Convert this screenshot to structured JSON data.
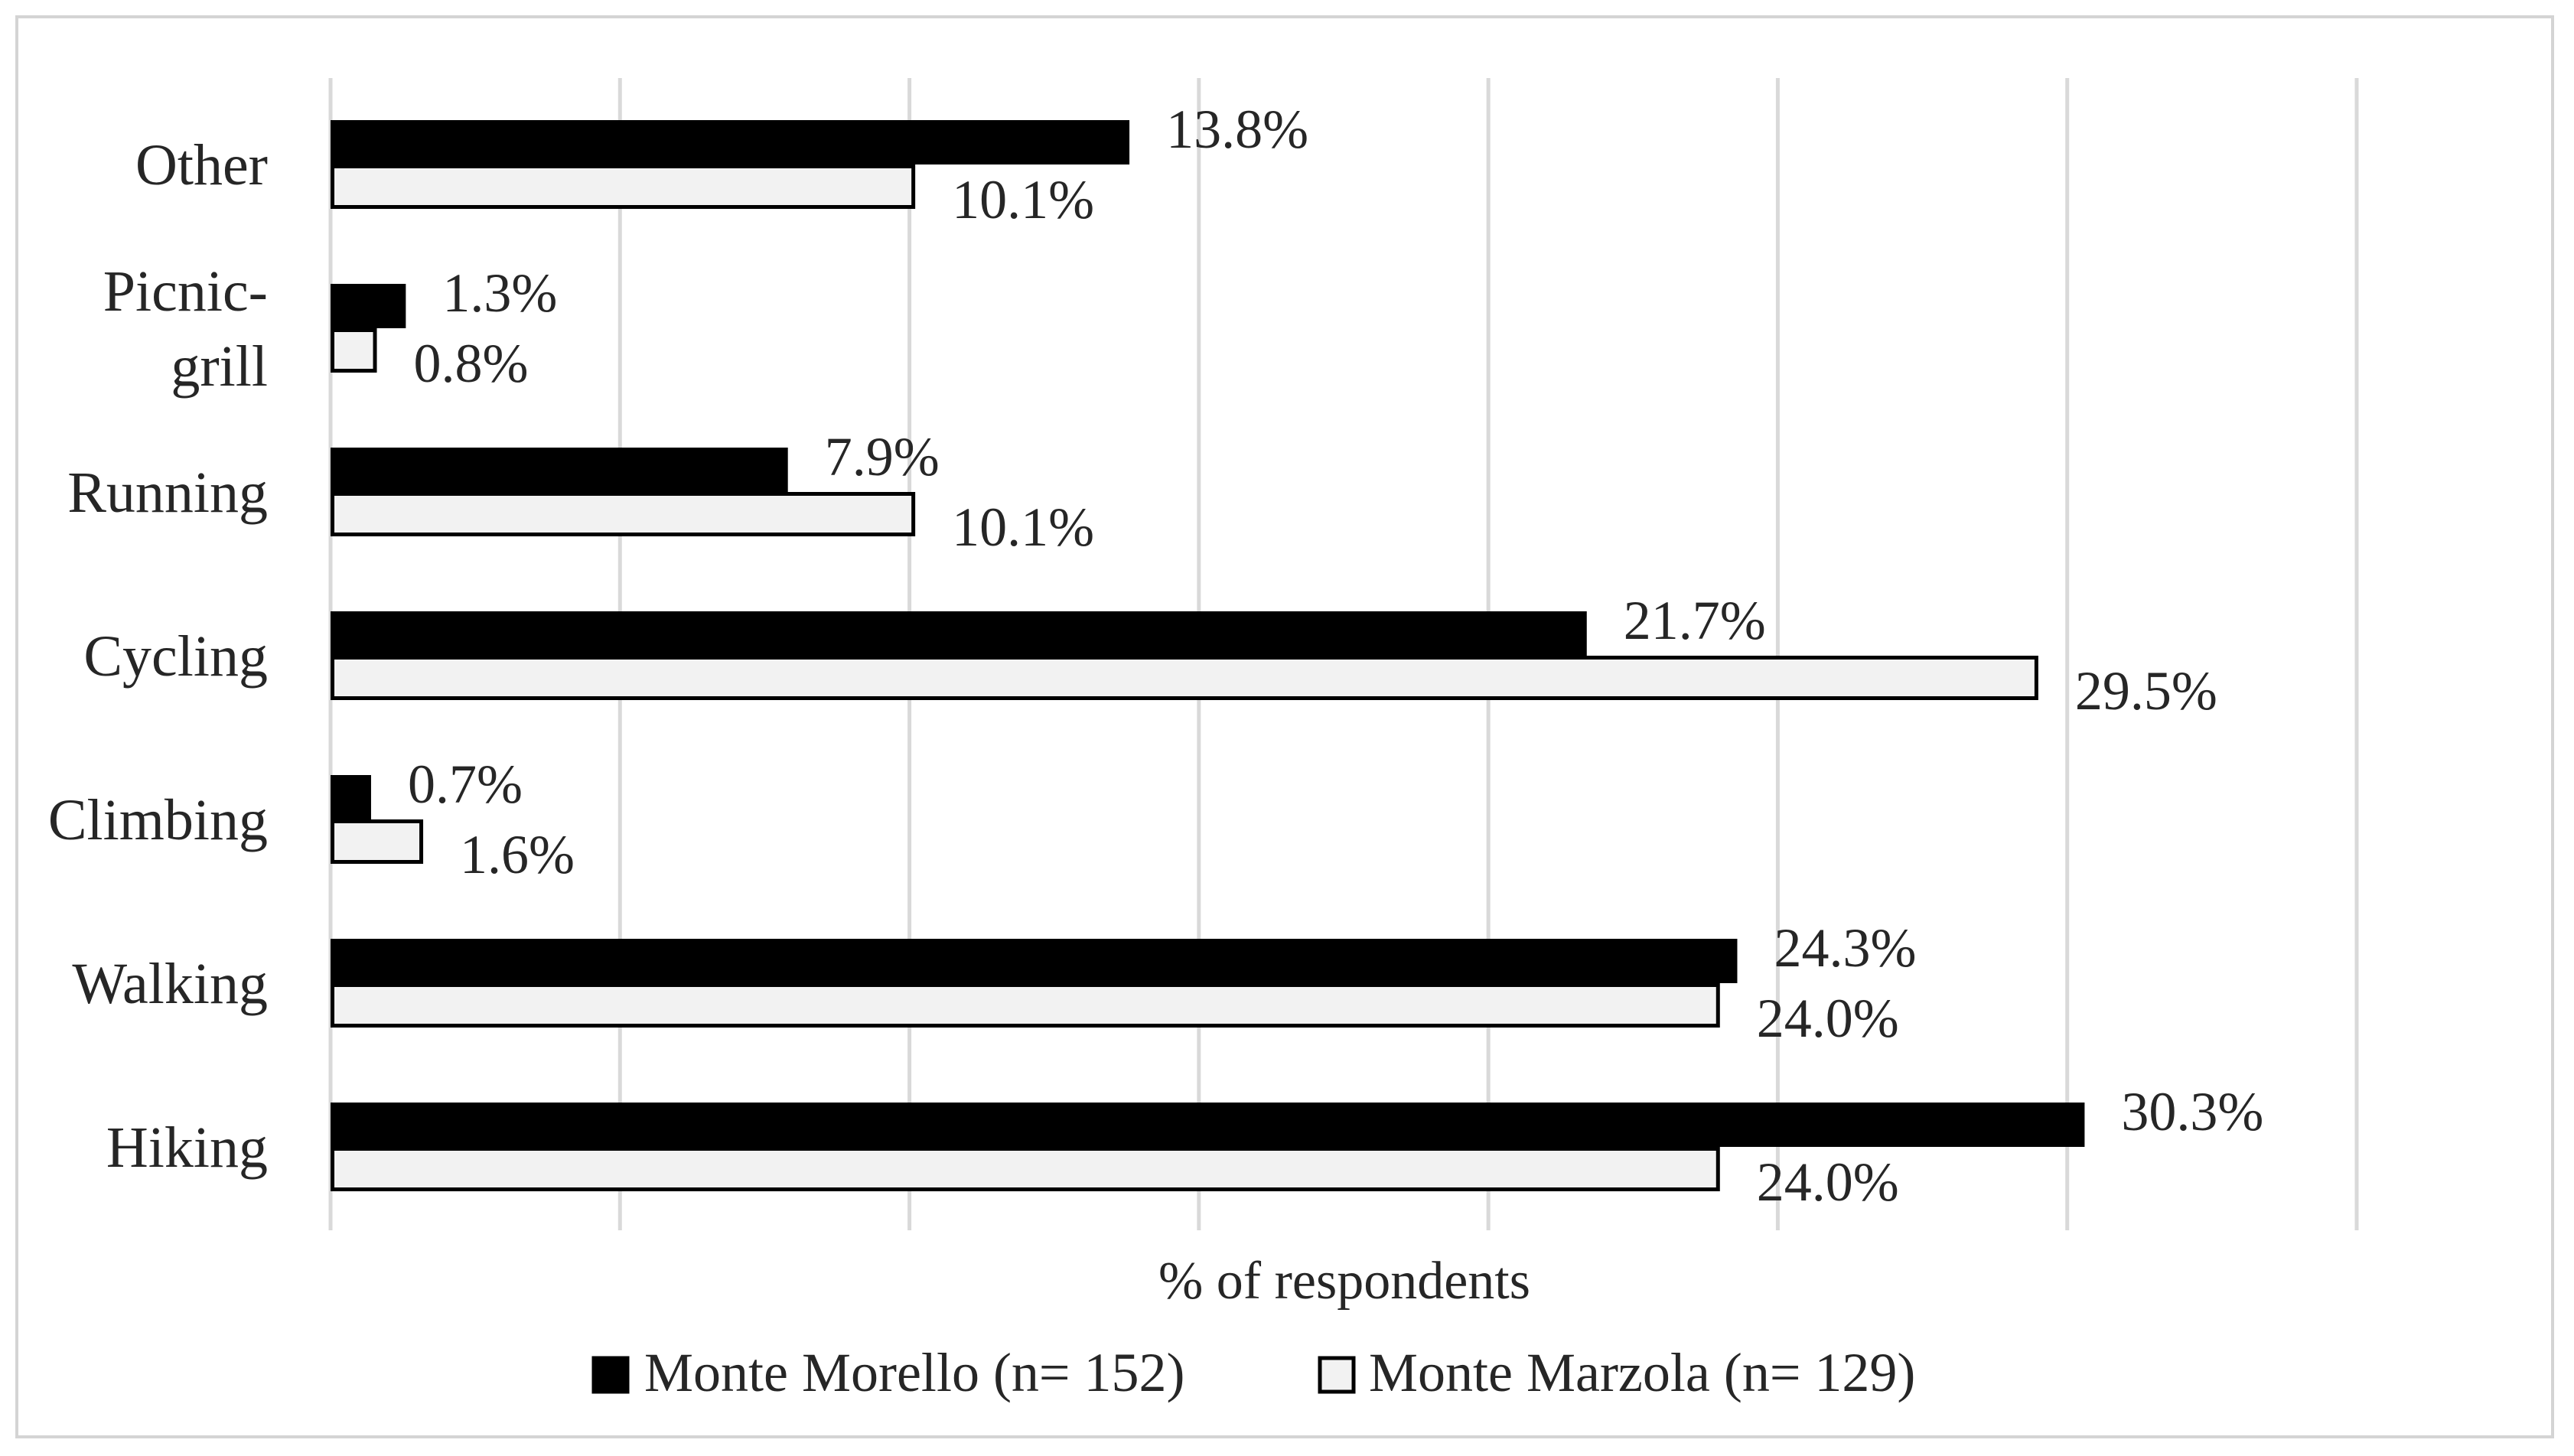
{
  "chart_data": {
    "type": "bar",
    "orientation": "horizontal",
    "categories": [
      "Other",
      "Picnic-grill",
      "Running",
      "Cycling",
      "Climbing",
      "Walking",
      "Hiking"
    ],
    "category_lines": [
      [
        "Other"
      ],
      [
        "Picnic-",
        "grill"
      ],
      [
        "Running"
      ],
      [
        "Cycling"
      ],
      [
        "Climbing"
      ],
      [
        "Walking"
      ],
      [
        "Hiking"
      ]
    ],
    "series": [
      {
        "name": "Monte Morello (n= 152)",
        "values": [
          13.8,
          1.3,
          7.9,
          21.7,
          0.7,
          24.3,
          30.3
        ],
        "labels": [
          "13.8%",
          "1.3%",
          "7.9%",
          "21.7%",
          "0.7%",
          "24.3%",
          "30.3%"
        ],
        "fill": "#000000",
        "stroke": "#000000"
      },
      {
        "name": "Monte Marzola (n= 129)",
        "values": [
          10.1,
          0.8,
          10.1,
          29.5,
          1.6,
          24.0,
          24.0
        ],
        "labels": [
          "10.1%",
          "0.8%",
          "10.1%",
          "29.5%",
          "1.6%",
          "24.0%",
          "24.0%"
        ],
        "fill": "#f2f2f2",
        "stroke": "#000000"
      }
    ],
    "xlabel": "% of respondents",
    "xlim": [
      0,
      35
    ],
    "gridlines": [
      0,
      5,
      10,
      15,
      20,
      25,
      30,
      35
    ],
    "grid": true,
    "tick_labels_shown": false,
    "legend_position": "bottom",
    "colors": {
      "grid": "#d9d9d9",
      "frame": "#d4d4d4",
      "text": "#262626"
    }
  }
}
